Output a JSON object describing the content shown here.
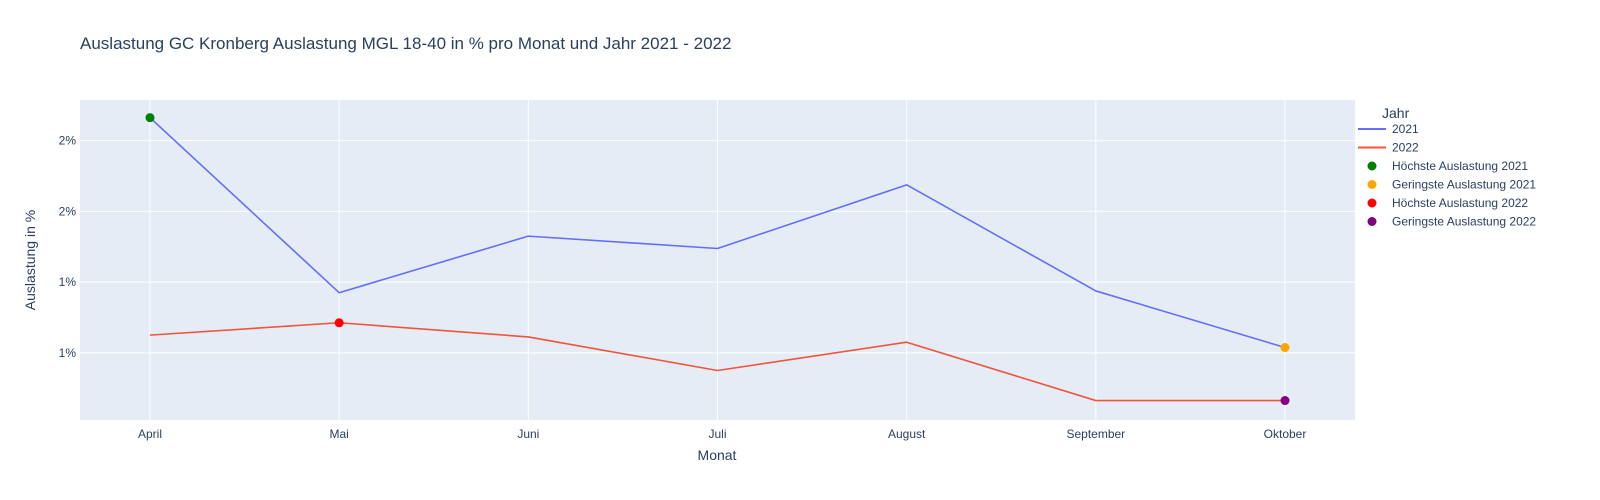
{
  "chart_data": {
    "type": "line",
    "title": "Auslastung GC Kronberg Auslastung MGL 18-40 in % pro Monat und Jahr 2021 - 2022",
    "xlabel": "Monat",
    "ylabel": "Auslastung in %",
    "categories": [
      "April",
      "Mai",
      "Juni",
      "Juli",
      "August",
      "September",
      "Oktober"
    ],
    "ylim": [
      0.52,
      2.33
    ],
    "yticks": [
      0.9,
      1.3,
      1.7,
      2.1
    ],
    "ytick_labels": [
      "1%",
      "1%",
      "2%",
      "2%"
    ],
    "grid": true,
    "legend_title": "Jahr",
    "legend_position": "right",
    "series": [
      {
        "name": "2021",
        "color": "#636efa",
        "values": [
          2.23,
          1.24,
          1.56,
          1.49,
          1.85,
          1.25,
          0.93
        ]
      },
      {
        "name": "2022",
        "color": "#ef553b",
        "values": [
          1.0,
          1.07,
          0.99,
          0.8,
          0.96,
          0.63,
          0.63
        ]
      }
    ],
    "markers": [
      {
        "name": "Höchste Auslastung 2021",
        "color": "#008000",
        "category": "April",
        "value": 2.23
      },
      {
        "name": "Geringste Auslastung 2021",
        "color": "#ffa500",
        "category": "Oktober",
        "value": 0.93
      },
      {
        "name": "Höchste Auslastung 2022",
        "color": "#ff0000",
        "category": "Mai",
        "value": 1.07
      },
      {
        "name": "Geringste Auslastung 2022",
        "color": "#800080",
        "category": "Oktober",
        "value": 0.63
      }
    ]
  }
}
